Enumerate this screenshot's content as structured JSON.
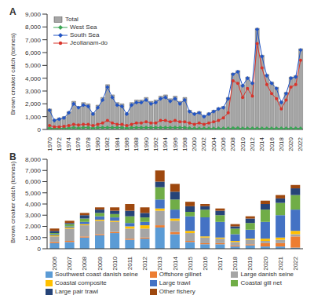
{
  "chart_data": [
    {
      "type": "bar",
      "title": "A",
      "ylabel": "Brown croaker catch (tonnes)",
      "legend": "top-left",
      "categories": [
        "1970",
        null,
        "1972",
        null,
        "1974",
        null,
        "1976",
        null,
        "1978",
        null,
        "1980",
        null,
        "1982",
        null,
        "1984",
        null,
        "1986",
        null,
        "1988",
        null,
        "1990",
        null,
        "1992",
        null,
        "1994",
        null,
        "1996",
        null,
        "1998",
        null,
        "2000",
        null,
        "2002",
        null,
        "2004",
        null,
        "2006",
        null,
        "2008",
        null,
        "2010",
        null,
        "2012",
        null,
        "2014",
        null,
        "2016",
        null,
        "2018",
        null,
        "2020",
        null,
        "2022"
      ],
      "ylim": [
        0,
        9000
      ],
      "yticks": [
        0,
        {
          "value": 1000,
          "label": "1,000"
        },
        {
          "value": 2000,
          "label": "2,000"
        },
        {
          "value": 3000,
          "label": "3,000"
        },
        {
          "value": 4000,
          "label": "4,000"
        },
        {
          "value": 5000,
          "label": "5,000"
        },
        {
          "value": 6000,
          "label": "6,000"
        },
        {
          "value": 7000,
          "label": "7,000"
        },
        {
          "value": 8000,
          "label": "8,000"
        },
        {
          "value": 9000,
          "label": "9,000"
        }
      ],
      "series": [
        {
          "name": "Total",
          "type": "bar",
          "color": "#a6a6a6",
          "values": [
            1600,
            800,
            900,
            1000,
            1400,
            2200,
            1800,
            2100,
            2000,
            1300,
            1900,
            2500,
            3500,
            2700,
            2100,
            2000,
            1300,
            2100,
            2300,
            2300,
            2500,
            2200,
            2300,
            2600,
            2700,
            2400,
            2600,
            2200,
            2500,
            1500,
            1300,
            1400,
            1100,
            1300,
            1500,
            1700,
            1800,
            2500,
            4400,
            4600,
            3500,
            4100,
            3700,
            7900,
            5800,
            4300,
            3700,
            3300,
            2200,
            2900,
            4100,
            4200,
            6300
          ]
        },
        {
          "name": "West Sea",
          "type": "line",
          "color": "#3aa655",
          "marker": "diamond",
          "values": [
            100,
            80,
            90,
            100,
            100,
            150,
            100,
            150,
            150,
            100,
            150,
            150,
            150,
            150,
            150,
            150,
            100,
            150,
            150,
            150,
            150,
            150,
            150,
            150,
            150,
            150,
            150,
            150,
            150,
            100,
            80,
            80,
            80,
            80,
            80,
            80,
            80,
            80,
            100,
            100,
            80,
            80,
            80,
            80,
            80,
            80,
            80,
            80,
            80,
            80,
            80,
            80,
            80
          ]
        },
        {
          "name": "South Sea",
          "type": "line",
          "color": "#2255c4",
          "marker": "diamond",
          "values": [
            1500,
            700,
            800,
            900,
            1300,
            2000,
            1700,
            1900,
            1800,
            1200,
            1700,
            2300,
            3300,
            2500,
            1900,
            1800,
            1200,
            1900,
            2100,
            2100,
            2300,
            2000,
            2100,
            2400,
            2500,
            2200,
            2400,
            2000,
            2300,
            1400,
            1200,
            1300,
            1000,
            1200,
            1400,
            1600,
            1700,
            2400,
            4300,
            4500,
            3400,
            4000,
            3600,
            7800,
            5700,
            4200,
            3600,
            3200,
            2100,
            2800,
            4000,
            4100,
            6200
          ]
        },
        {
          "name": "Jeollanam-do",
          "type": "line",
          "color": "#d9342b",
          "marker": "circle",
          "values": [
            300,
            200,
            200,
            250,
            300,
            400,
            350,
            400,
            400,
            300,
            400,
            500,
            700,
            500,
            400,
            400,
            300,
            400,
            500,
            500,
            600,
            500,
            500,
            700,
            700,
            600,
            700,
            600,
            600,
            500,
            400,
            500,
            400,
            500,
            600,
            700,
            900,
            1300,
            3800,
            3600,
            2500,
            3200,
            2600,
            6700,
            4800,
            3500,
            2800,
            2400,
            1600,
            2300,
            3300,
            3500,
            5400
          ]
        }
      ]
    },
    {
      "type": "bar",
      "stacked": true,
      "title": "B",
      "ylabel": "Brown croaker catch (tonnes)",
      "legend": "bottom",
      "categories": [
        "2006",
        "2007",
        "2008",
        "2009",
        "2010",
        "2011",
        "2012",
        "2013",
        "2014",
        "2015",
        "2016",
        "2017",
        "2018",
        "2019",
        "2020",
        "2021",
        "2022"
      ],
      "ylim": [
        0,
        8000
      ],
      "yticks": [
        0,
        {
          "value": 1000,
          "label": "1,000"
        },
        {
          "value": 2000,
          "label": "2,000"
        },
        {
          "value": 3000,
          "label": "3,000"
        },
        {
          "value": 4000,
          "label": "4,000"
        },
        {
          "value": 5000,
          "label": "5,000"
        },
        {
          "value": 6000,
          "label": "6,000"
        },
        {
          "value": 7000,
          "label": "7,000"
        },
        {
          "value": 8000,
          "label": "8,000"
        }
      ],
      "series": [
        {
          "name": "Southwest coast danish seine",
          "color": "#5b9bd5",
          "values": [
            500,
            600,
            1000,
            1200,
            1400,
            800,
            900,
            1900,
            1300,
            600,
            400,
            400,
            200,
            300,
            200,
            200,
            100
          ]
        },
        {
          "name": "Offshore gillnet",
          "color": "#ed7d31",
          "values": [
            100,
            100,
            100,
            100,
            100,
            100,
            100,
            200,
            200,
            100,
            100,
            100,
            100,
            100,
            300,
            300,
            1000
          ]
        },
        {
          "name": "Large danish seine",
          "color": "#a5a5a5",
          "values": [
            500,
            1100,
            1000,
            1200,
            900,
            900,
            800,
            1300,
            1000,
            700,
            500,
            400,
            300,
            400,
            200,
            300,
            200
          ]
        },
        {
          "name": "Coastal composite",
          "color": "#ffc000",
          "values": [
            100,
            100,
            100,
            100,
            100,
            200,
            300,
            200,
            200,
            200,
            100,
            100,
            100,
            100,
            200,
            200,
            300
          ]
        },
        {
          "name": "Large trawl",
          "color": "#4472c4",
          "values": [
            100,
            100,
            200,
            300,
            300,
            300,
            300,
            800,
            800,
            1300,
            1700,
            1400,
            600,
            800,
            1500,
            2000,
            1900
          ]
        },
        {
          "name": "Coastal gill net",
          "color": "#70ad47",
          "values": [
            100,
            200,
            300,
            300,
            300,
            600,
            400,
            1100,
            900,
            400,
            700,
            600,
            500,
            600,
            1100,
            1100,
            1300
          ]
        },
        {
          "name": "Large pair trawl",
          "color": "#264478",
          "values": [
            200,
            100,
            300,
            300,
            300,
            500,
            400,
            500,
            700,
            500,
            300,
            400,
            200,
            400,
            500,
            400,
            600
          ]
        },
        {
          "name": "Other fishery",
          "color": "#9e480e",
          "values": [
            200,
            200,
            200,
            200,
            300,
            600,
            500,
            1000,
            700,
            400,
            200,
            200,
            200,
            200,
            300,
            300,
            300
          ]
        }
      ]
    }
  ]
}
